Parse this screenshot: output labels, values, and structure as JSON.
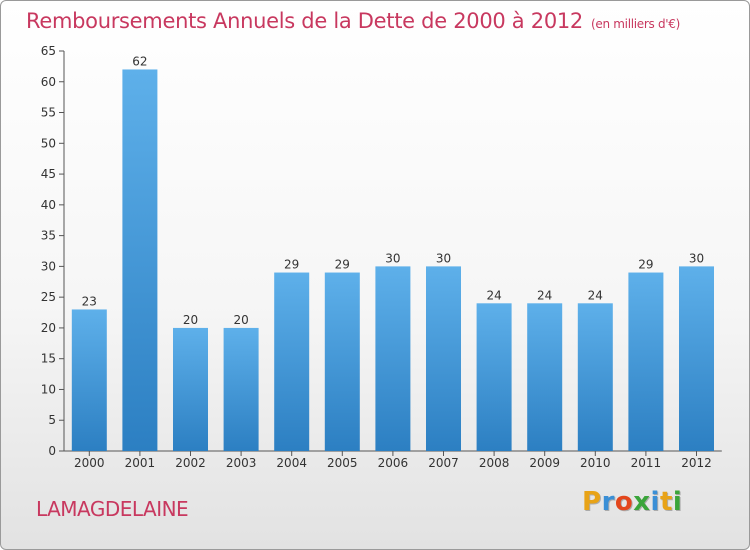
{
  "header": {
    "title": "Remboursements Annuels de la Dette de 2000 à 2012",
    "unit": "(en milliers d'€)"
  },
  "footer": {
    "commune": "LAMAGDELAINE",
    "logo_letters": [
      "P",
      "r",
      "o",
      "x",
      "i",
      "t",
      "i"
    ],
    "logo_colors": [
      "#e8a317",
      "#3a8fd6",
      "#e3471d",
      "#3aa53a",
      "#3a8fd6",
      "#e8a317",
      "#3aa53a"
    ]
  },
  "colors": {
    "bar_light": "#5eb0ea",
    "bar_dark": "#2c7fc2",
    "accent": "#c8385f"
  },
  "chart_data": {
    "type": "bar",
    "title": "Remboursements Annuels de la Dette de 2000 à 2012",
    "categories": [
      "2000",
      "2001",
      "2002",
      "2003",
      "2004",
      "2005",
      "2006",
      "2007",
      "2008",
      "2009",
      "2010",
      "2011",
      "2012"
    ],
    "values": [
      23,
      62,
      20,
      20,
      29,
      29,
      30,
      30,
      24,
      24,
      24,
      29,
      30
    ],
    "ylim": [
      0,
      65
    ],
    "yticks": [
      0,
      5,
      10,
      15,
      20,
      25,
      30,
      35,
      40,
      45,
      50,
      55,
      60,
      65
    ],
    "xlabel": "",
    "ylabel": "",
    "grid": false
  }
}
